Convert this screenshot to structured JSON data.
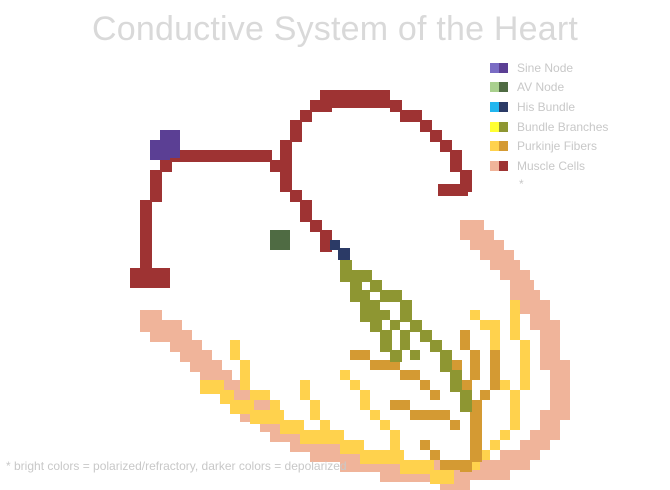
{
  "title": "Conductive System of the Heart",
  "legend": [
    {
      "label": "Sine Node",
      "bright": "#7a6cc4",
      "dark": "#5b3f94"
    },
    {
      "label": "AV Node",
      "bright": "#a9d08e",
      "dark": "#4f6b43"
    },
    {
      "label": "His Bundle",
      "bright": "#22b6ef",
      "dark": "#2b3a66"
    },
    {
      "label": "Bundle Branches",
      "bright": "#ffff33",
      "dark": "#8e9632"
    },
    {
      "label": "Purkinje Fibers",
      "bright": "#ffd24d",
      "dark": "#d49a33"
    },
    {
      "label": "Muscle Cells",
      "bright": "#f0b49a",
      "dark": "#9e3333"
    }
  ],
  "legend_star": "*",
  "footnote": "* bright colors = polarized/refractory, darker colors = depolarized",
  "colors": {
    "title": "#d9d9d9",
    "muscle_depolarized": "#9e3333",
    "muscle_polarized": "#f0b49a",
    "sine_node": "#5b3f94",
    "av_node": "#4f6b43",
    "his_bundle": "#2b3a66",
    "bundle_branches": "#8e9632",
    "purkinje_bright": "#ffd24d",
    "purkinje_dark": "#d49a33"
  }
}
